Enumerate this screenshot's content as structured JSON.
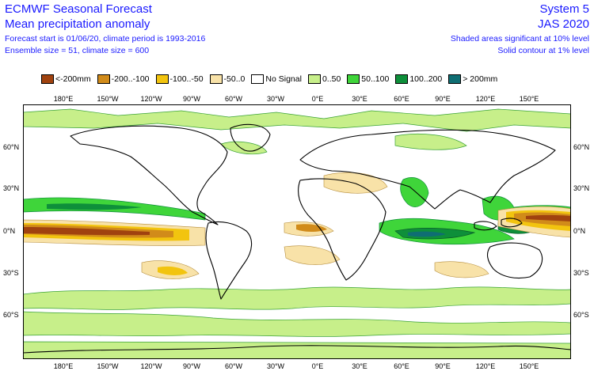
{
  "header": {
    "title": "ECMWF Seasonal Forecast",
    "subtitle": "Mean precipitation anomaly",
    "info1": "Forecast start is 01/06/20, climate period is 1993-2016",
    "info2": "Ensemble size = 51, climate size = 600",
    "system": "System 5",
    "period": "JAS 2020",
    "note1": "Shaded areas significant at 10% level",
    "note2": "Solid contour at 1% level"
  },
  "legend": [
    {
      "label": "<-200mm",
      "color": "#a0420f"
    },
    {
      "label": "-200..-100",
      "color": "#d18b1a"
    },
    {
      "label": "-100..-50",
      "color": "#f2c40f"
    },
    {
      "label": "-50..0",
      "color": "#f8e2a8"
    },
    {
      "label": "No Signal",
      "color": "#ffffff"
    },
    {
      "label": "0..50",
      "color": "#c7ef8a"
    },
    {
      "label": "50..100",
      "color": "#3fd53a"
    },
    {
      "label": "100..200",
      "color": "#0e8f3a"
    },
    {
      "label": "> 200mm",
      "color": "#0f6e73"
    }
  ],
  "axes": {
    "top": [
      "180°E",
      "150°W",
      "120°W",
      "90°W",
      "60°W",
      "30°W",
      "0°E",
      "30°E",
      "60°E",
      "90°E",
      "120°E",
      "150°E"
    ],
    "bottom": [
      "180°E",
      "150°W",
      "120°W",
      "90°W",
      "60°W",
      "30°W",
      "0°E",
      "30°E",
      "60°E",
      "90°E",
      "120°E",
      "150°E"
    ],
    "left": [
      "60°N",
      "30°N",
      "0°N",
      "30°S",
      "60°S"
    ],
    "right": [
      "60°N",
      "30°N",
      "0°N",
      "30°S",
      "60°S"
    ]
  }
}
